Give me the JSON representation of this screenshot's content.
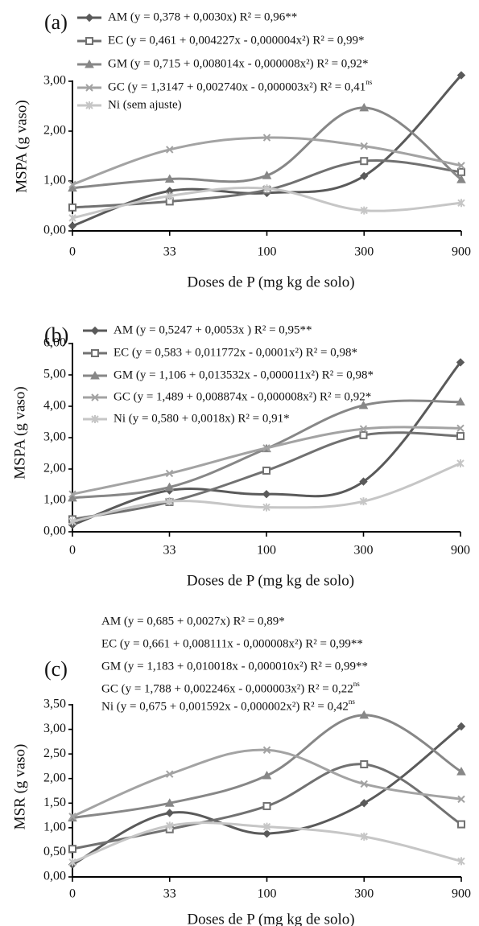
{
  "chart_data": [
    {
      "type": "line",
      "panel_label": "(a)",
      "xlabel": "Doses de P (mg kg de solo)",
      "ylabel": "MSPA (g vaso)",
      "categories": [
        "0",
        "33",
        "100",
        "300",
        "900"
      ],
      "ylim": [
        0,
        3.0
      ],
      "yticks": [
        "0,00",
        "1,00",
        "2,00",
        "3,00"
      ],
      "ytick_values": [
        0,
        1,
        2,
        3
      ],
      "legend_placement": "top",
      "series": [
        {
          "name": "AM (y = 0,378 + 0,0030x) R² = 0,96**",
          "values": [
            0.1,
            0.8,
            0.76,
            1.1,
            3.12
          ],
          "color": "#5a5a5a",
          "marker": "diamond"
        },
        {
          "name": "EC (y =  0,461 + 0,004227x - 0,000004x²)  R² = 0,99*",
          "values": [
            0.47,
            0.59,
            0.82,
            1.4,
            1.18
          ],
          "color": "#717171",
          "marker": "square"
        },
        {
          "name": "GM (y = 0,715 + 0,008014x - 0,000008x²)  R² = 0,92*",
          "values": [
            0.86,
            1.04,
            1.11,
            2.47,
            1.03
          ],
          "color": "#878787",
          "marker": "triangle"
        },
        {
          "name": "GC (y = 1,3147 + 0,002740x  - 0,000003x²)  R² = 0,41ns",
          "values": [
            0.93,
            1.63,
            1.87,
            1.7,
            1.31
          ],
          "color": "#a3a3a3",
          "marker": "x"
        },
        {
          "name": "Ni (sem ajuste)",
          "values": [
            0.26,
            0.7,
            0.85,
            0.41,
            0.56
          ],
          "color": "#c6c6c6",
          "marker": "star"
        }
      ]
    },
    {
      "type": "line",
      "panel_label": "(b)",
      "xlabel": "Doses de P (mg kg de solo)",
      "ylabel": "MSPA (g vaso)",
      "categories": [
        "0",
        "33",
        "100",
        "300",
        "900"
      ],
      "ylim": [
        0,
        6.0
      ],
      "yticks": [
        "0,00",
        "1,00",
        "2,00",
        "3,00",
        "4,00",
        "5,00",
        "6,00"
      ],
      "ytick_values": [
        0,
        1,
        2,
        3,
        4,
        5,
        6
      ],
      "legend_placement": "top",
      "series": [
        {
          "name": "AM (y = 0,5247 + 0,0053x ) R² = 0,95**",
          "values": [
            0.22,
            1.32,
            1.2,
            1.6,
            5.4
          ],
          "color": "#5a5a5a",
          "marker": "diamond"
        },
        {
          "name": "EC (y = 0,583 + 0,011772x - 0,0001x²) R² = 0,98*",
          "values": [
            0.4,
            0.95,
            1.95,
            3.08,
            3.05
          ],
          "color": "#717171",
          "marker": "square"
        },
        {
          "name": "GM (y = 1,106 + 0,013532x - 0,000011x²) R² = 0,98*",
          "values": [
            1.08,
            1.42,
            2.65,
            4.03,
            4.14
          ],
          "color": "#878787",
          "marker": "triangle"
        },
        {
          "name": "GC (y = 1,489 + 0,008874x - 0,000008x²) R² = 0,92*",
          "values": [
            1.2,
            1.86,
            2.67,
            3.28,
            3.3
          ],
          "color": "#a3a3a3",
          "marker": "x"
        },
        {
          "name": "Ni (y = 0,580 + 0,0018x) R² = 0,91*",
          "values": [
            0.33,
            0.97,
            0.78,
            0.97,
            2.18
          ],
          "color": "#c6c6c6",
          "marker": "star"
        }
      ]
    },
    {
      "type": "line",
      "panel_label": "(c)",
      "xlabel": "Doses de P (mg kg de solo)",
      "ylabel": "MSR (g vaso)",
      "categories": [
        "0",
        "33",
        "100",
        "300",
        "900"
      ],
      "ylim": [
        0,
        3.5
      ],
      "yticks": [
        "0,00",
        "0,50",
        "1,00",
        "1,50",
        "2,00",
        "2,50",
        "3,00",
        "3,50"
      ],
      "ytick_values": [
        0,
        0.5,
        1,
        1.5,
        2,
        2.5,
        3,
        3.5
      ],
      "legend_placement": "top",
      "series": [
        {
          "name": "AM (y = 0,685 + 0,0027x)  R² = 0,89*",
          "values": [
            0.25,
            1.3,
            0.88,
            1.5,
            3.06
          ],
          "color": "#5a5a5a",
          "marker": "diamond"
        },
        {
          "name": "EC (y = 0,661 + 0,008111x - 0,000008x²) R² = 0,99**",
          "values": [
            0.57,
            0.97,
            1.44,
            2.29,
            1.07
          ],
          "color": "#717171",
          "marker": "square"
        },
        {
          "name": "GM (y = 1,183 + 0,010018x - 0,000010x²) R² = 0,99**",
          "values": [
            1.2,
            1.5,
            2.06,
            3.29,
            2.14
          ],
          "color": "#878787",
          "marker": "triangle"
        },
        {
          "name": "GC (y = 1,788 + 0,002246x - 0,000003x²) R² = 0,22ns",
          "values": [
            1.23,
            2.09,
            2.58,
            1.89,
            1.58
          ],
          "color": "#a3a3a3",
          "marker": "x"
        },
        {
          "name": "Ni (y = 0,675 + 0,001592x - 0,000002x²) R² = 0,42ns",
          "values": [
            0.3,
            1.04,
            1.02,
            0.82,
            0.32
          ],
          "color": "#c6c6c6",
          "marker": "star"
        }
      ]
    }
  ]
}
